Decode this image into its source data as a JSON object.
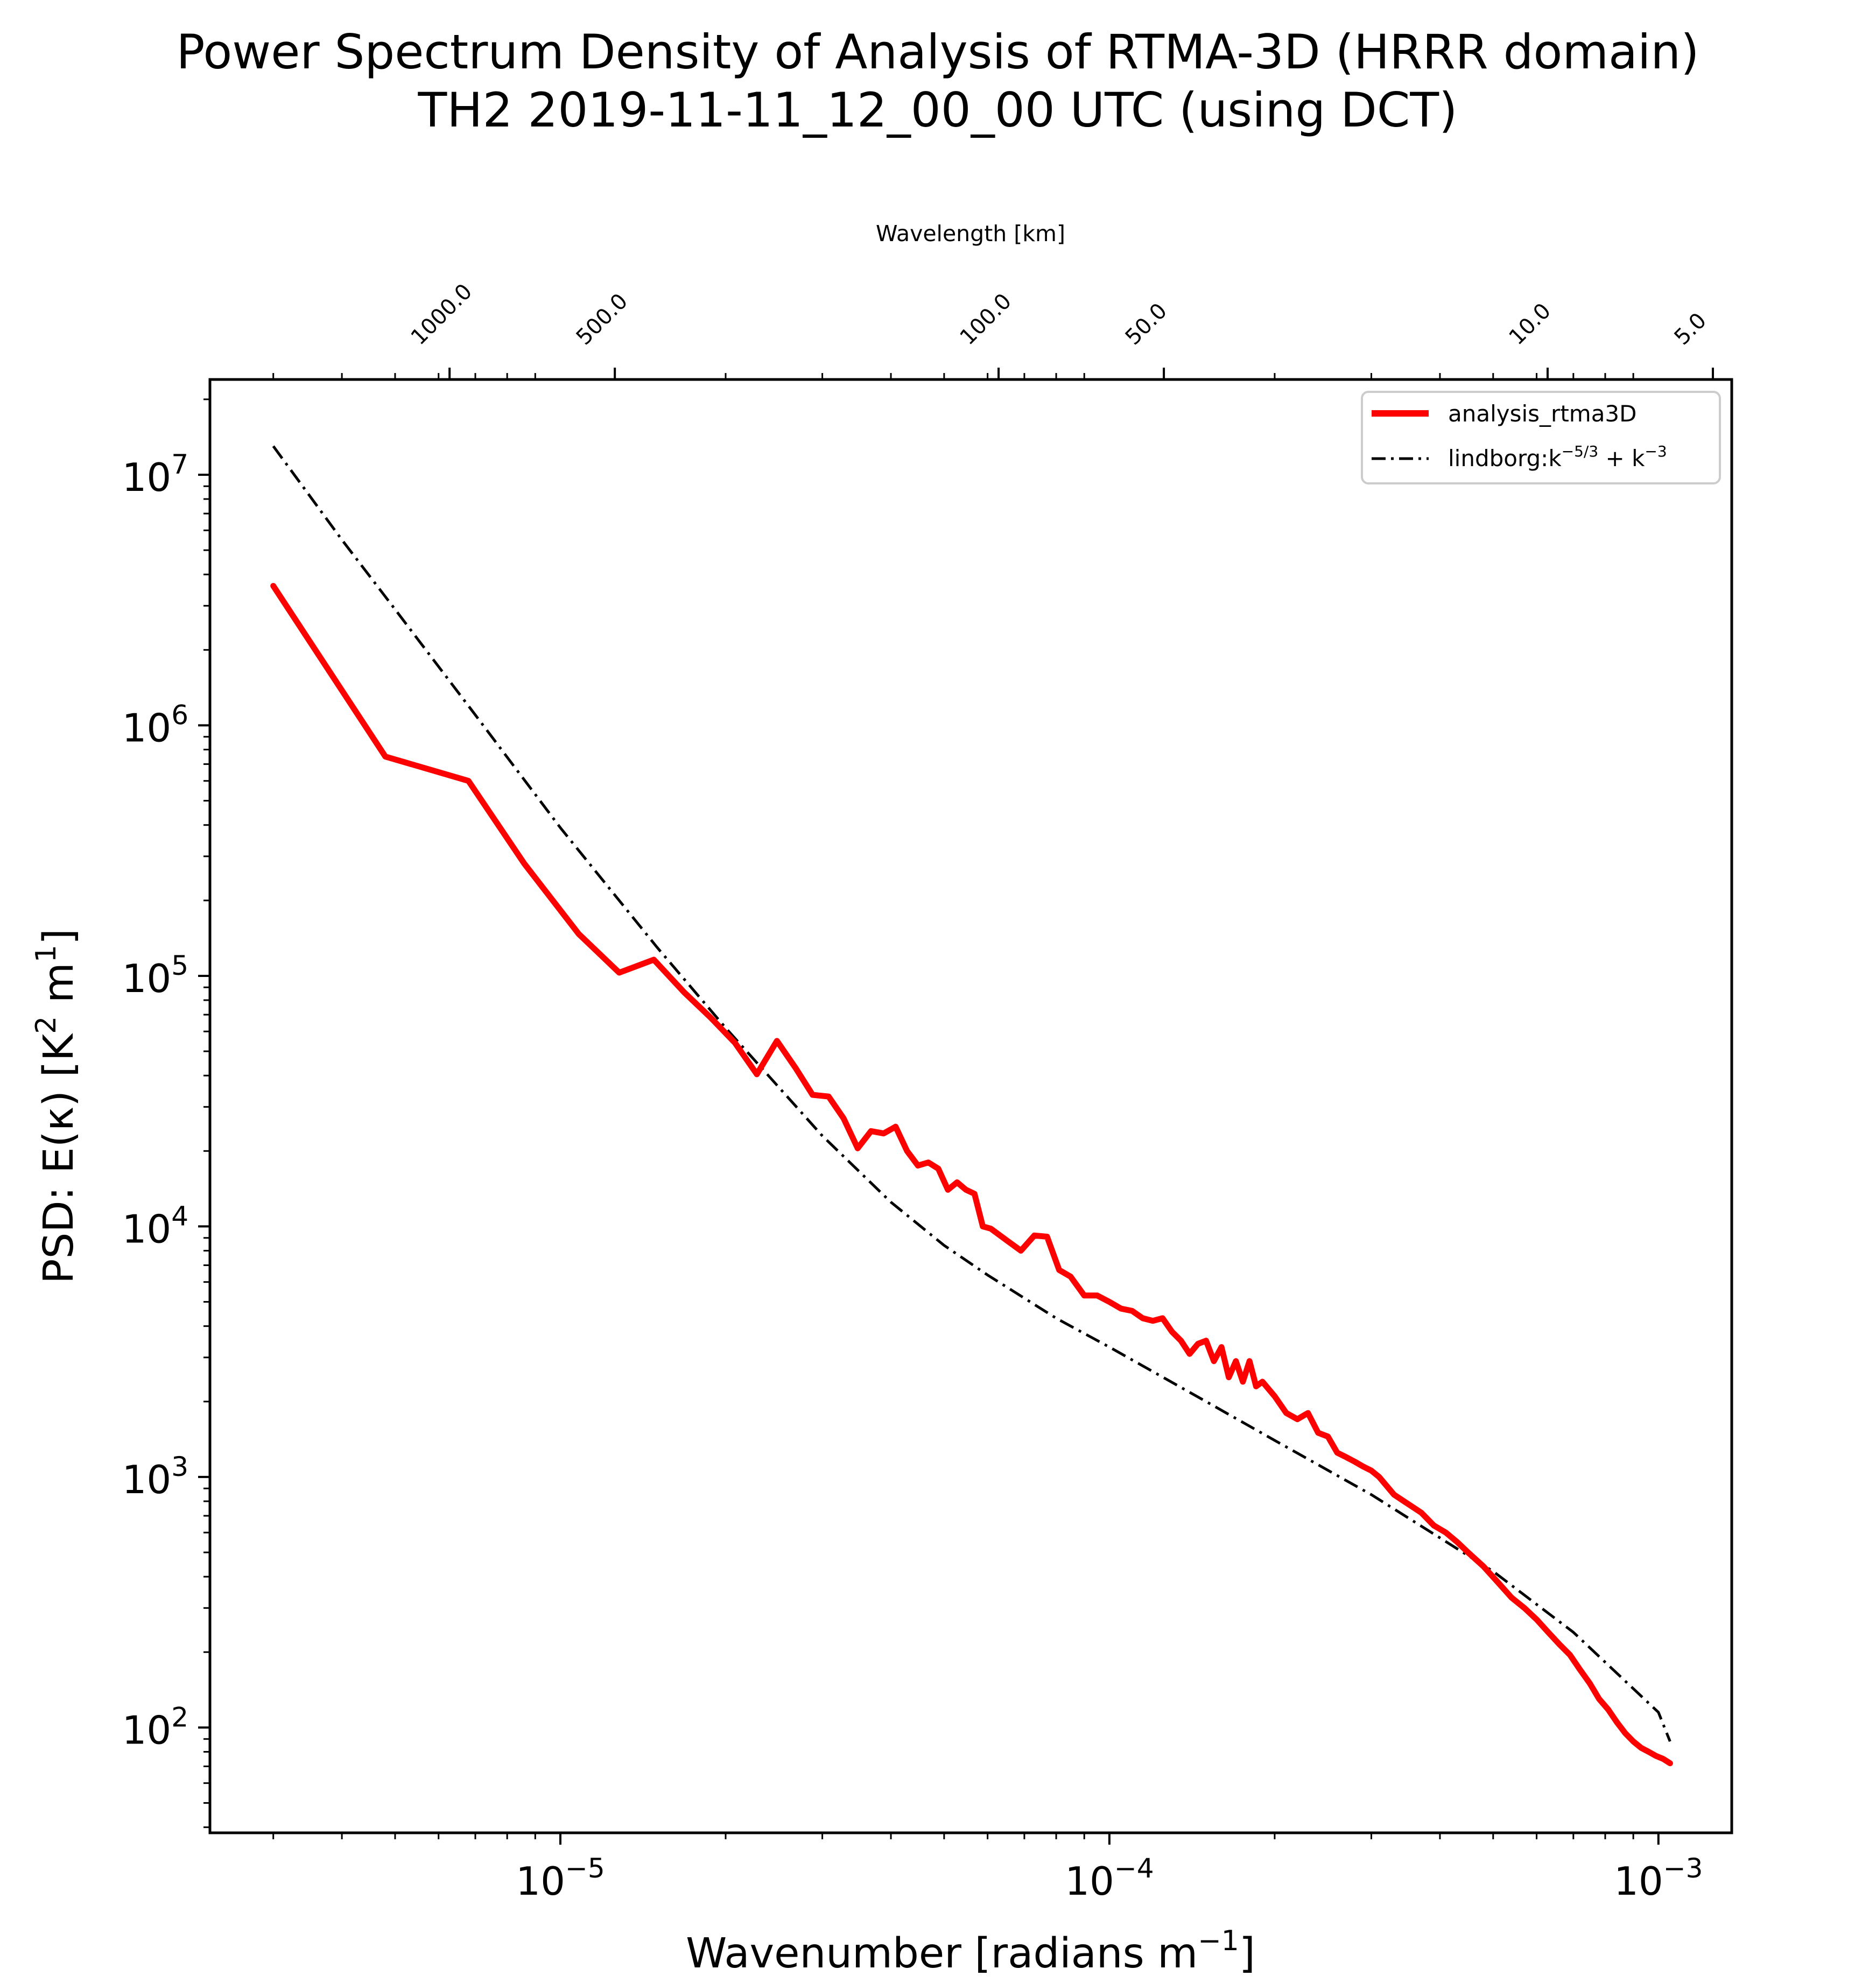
{
  "chart_data": {
    "type": "line",
    "title_line1": "Power Spectrum Density of Analysis of RTMA-3D (HRRR domain)",
    "title_line2": "TH2   2019-11-11_12_00_00 UTC (using DCT)",
    "xlabel": "Wavenumber [radians m",
    "xlabel_sup": "−1",
    "xlabel_end": "]",
    "ylabel": "PSD:  E(κ)  [K",
    "ylabel_sup1": "2",
    "ylabel_mid": " m",
    "ylabel_sup2": "1",
    "ylabel_end": "]",
    "top_xlabel": "Wavelength [km]",
    "xscale": "log",
    "yscale": "log",
    "xlim": [
      2.3e-06,
      0.00136
    ],
    "ylim": [
      38,
      24000000
    ],
    "x_ticks": [
      {
        "value": 1e-05,
        "base": "10",
        "exp": "−5"
      },
      {
        "value": 0.0001,
        "base": "10",
        "exp": "−4"
      },
      {
        "value": 0.001,
        "base": "10",
        "exp": "−3"
      }
    ],
    "y_ticks": [
      {
        "value": 100,
        "base": "10",
        "exp": "2"
      },
      {
        "value": 1000,
        "base": "10",
        "exp": "3"
      },
      {
        "value": 10000,
        "base": "10",
        "exp": "4"
      },
      {
        "value": 100000,
        "base": "10",
        "exp": "5"
      },
      {
        "value": 1000000,
        "base": "10",
        "exp": "6"
      },
      {
        "value": 10000000,
        "base": "10",
        "exp": "7"
      }
    ],
    "top_ticks": [
      {
        "wavelength_km": 1000,
        "label": "1000.0"
      },
      {
        "wavelength_km": 500,
        "label": "500.0"
      },
      {
        "wavelength_km": 100,
        "label": "100.0"
      },
      {
        "wavelength_km": 50,
        "label": "50.0"
      },
      {
        "wavelength_km": 10,
        "label": "10.0"
      },
      {
        "wavelength_km": 5,
        "label": "5.0"
      }
    ],
    "legend": {
      "placement": "upper-right",
      "entries": [
        {
          "label": "analysis_rtma3D",
          "style": "solid",
          "color": "#ff0000"
        },
        {
          "label": "lindborg:k",
          "sup1": "−5/3",
          "mid": " + k",
          "sup2": "−3",
          "style": "dashdot",
          "color": "#000000"
        }
      ]
    },
    "series": [
      {
        "name": "analysis_rtma3D",
        "color": "#ff0000",
        "style": "solid",
        "points": [
          [
            3e-06,
            3600000
          ],
          [
            4.8e-06,
            750000
          ],
          [
            6.8e-06,
            600000
          ],
          [
            8.6e-06,
            280000
          ],
          [
            1.08e-05,
            147000
          ],
          [
            1.28e-05,
            103000
          ],
          [
            1.48e-05,
            116000
          ],
          [
            1.68e-05,
            86000
          ],
          [
            1.88e-05,
            68000
          ],
          [
            2.08e-05,
            54000
          ],
          [
            2.28e-05,
            40500
          ],
          [
            2.48e-05,
            55000
          ],
          [
            2.68e-05,
            43000
          ],
          [
            2.88e-05,
            33500
          ],
          [
            3.08e-05,
            33000
          ],
          [
            3.28e-05,
            27000
          ],
          [
            3.48e-05,
            20500
          ],
          [
            3.68e-05,
            24000
          ],
          [
            3.88e-05,
            23500
          ],
          [
            4.08e-05,
            25000
          ],
          [
            4.28e-05,
            20000
          ],
          [
            4.48e-05,
            17500
          ],
          [
            4.68e-05,
            18000
          ],
          [
            4.88e-05,
            17000
          ],
          [
            5.08e-05,
            14000
          ],
          [
            5.28e-05,
            15000
          ],
          [
            5.48e-05,
            14000
          ],
          [
            5.68e-05,
            13500
          ],
          [
            5.88e-05,
            10000
          ],
          [
            6.08e-05,
            9800
          ],
          [
            6.5e-05,
            8800
          ],
          [
            6.9e-05,
            8000
          ],
          [
            7.3e-05,
            9200
          ],
          [
            7.7e-05,
            9100
          ],
          [
            8.1e-05,
            6700
          ],
          [
            8.5e-05,
            6300
          ],
          [
            9e-05,
            5300
          ],
          [
            9.5e-05,
            5300
          ],
          [
            0.0001,
            5000
          ],
          [
            0.000105,
            4700
          ],
          [
            0.00011,
            4600
          ],
          [
            0.000115,
            4300
          ],
          [
            0.00012,
            4200
          ],
          [
            0.000125,
            4300
          ],
          [
            0.00013,
            3800
          ],
          [
            0.000135,
            3500
          ],
          [
            0.00014,
            3100
          ],
          [
            0.000145,
            3400
          ],
          [
            0.00015,
            3500
          ],
          [
            0.000155,
            2900
          ],
          [
            0.00016,
            3300
          ],
          [
            0.000165,
            2500
          ],
          [
            0.00017,
            2900
          ],
          [
            0.000175,
            2400
          ],
          [
            0.00018,
            2900
          ],
          [
            0.000185,
            2300
          ],
          [
            0.00019,
            2400
          ],
          [
            0.0002,
            2100
          ],
          [
            0.00021,
            1800
          ],
          [
            0.00022,
            1700
          ],
          [
            0.00023,
            1800
          ],
          [
            0.00024,
            1500
          ],
          [
            0.00025,
            1450
          ],
          [
            0.00026,
            1250
          ],
          [
            0.00027,
            1200
          ],
          [
            0.00028,
            1150
          ],
          [
            0.00029,
            1100
          ],
          [
            0.0003,
            1060
          ],
          [
            0.00031,
            1000
          ],
          [
            0.00033,
            850
          ],
          [
            0.00035,
            780
          ],
          [
            0.00037,
            720
          ],
          [
            0.00039,
            640
          ],
          [
            0.00041,
            600
          ],
          [
            0.00043,
            550
          ],
          [
            0.00045,
            500
          ],
          [
            0.00048,
            440
          ],
          [
            0.00051,
            380
          ],
          [
            0.00054,
            330
          ],
          [
            0.00057,
            300
          ],
          [
            0.0006,
            270
          ],
          [
            0.00063,
            240
          ],
          [
            0.00066,
            215
          ],
          [
            0.00069,
            195
          ],
          [
            0.00072,
            170
          ],
          [
            0.00075,
            150
          ],
          [
            0.00078,
            130
          ],
          [
            0.00081,
            118
          ],
          [
            0.00084,
            105
          ],
          [
            0.00087,
            95
          ],
          [
            0.0009,
            88
          ],
          [
            0.00093,
            83
          ],
          [
            0.00096,
            80
          ],
          [
            0.00099,
            77
          ],
          [
            0.00102,
            75
          ],
          [
            0.00105,
            72
          ]
        ]
      },
      {
        "name": "lindborg:k⁻⁵ᐟ³ + k⁻³",
        "color": "#000000",
        "style": "dashdot",
        "points": [
          [
            3e-06,
            13000000
          ],
          [
            4e-06,
            5500000
          ],
          [
            5e-06,
            2900000
          ],
          [
            7e-06,
            1100000
          ],
          [
            1e-05,
            390000
          ],
          [
            1.5e-05,
            130000
          ],
          [
            2e-05,
            62000
          ],
          [
            3e-05,
            23000
          ],
          [
            4e-05,
            12500
          ],
          [
            5e-05,
            8400
          ],
          [
            6e-05,
            6400
          ],
          [
            8e-05,
            4300
          ],
          [
            0.0001,
            3300
          ],
          [
            0.00015,
            2000
          ],
          [
            0.0002,
            1400
          ],
          [
            0.0003,
            850
          ],
          [
            0.0005,
            420
          ],
          [
            0.0007,
            240
          ],
          [
            0.001,
            115
          ],
          [
            0.00105,
            88
          ]
        ]
      }
    ]
  }
}
